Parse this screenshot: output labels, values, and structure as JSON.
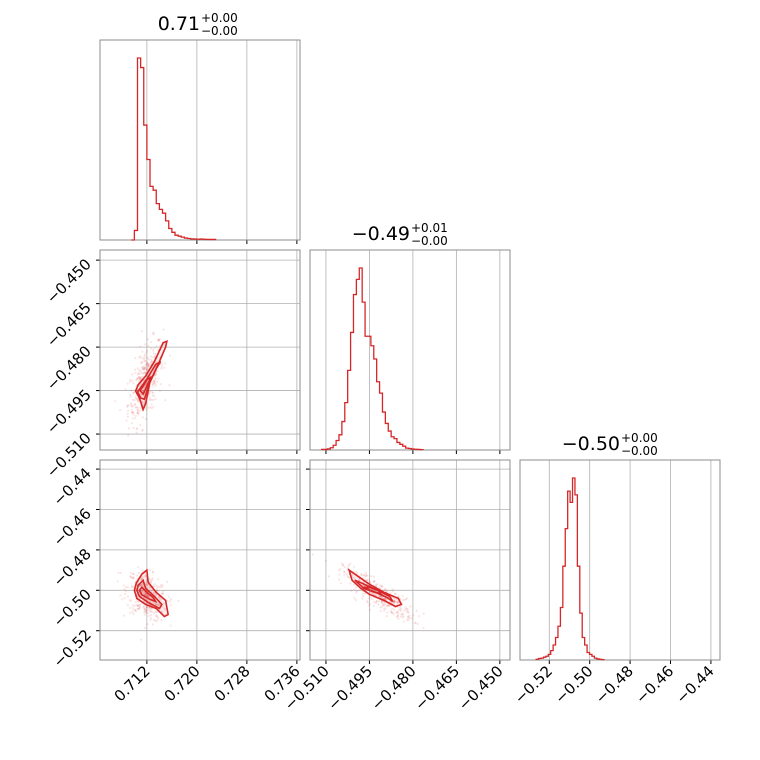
{
  "colors": {
    "line": "#d62728",
    "frame": "#8c8c8c",
    "grid": "#b0b0b0",
    "background": "#ffffff"
  },
  "chart_data": {
    "type": "corner",
    "parameters": [
      {
        "range": [
          0.7045,
          0.7365
        ],
        "ticks": [
          0.712,
          0.72,
          0.728,
          0.736
        ],
        "tick_labels": [
          "0.712",
          "0.720",
          "0.728",
          "0.736"
        ]
      },
      {
        "range": [
          -0.5155,
          -0.4465
        ],
        "ticks": [
          -0.51,
          -0.495,
          -0.48,
          -0.465,
          -0.45
        ],
        "tick_labels": [
          "−0.510",
          "−0.495",
          "−0.480",
          "−0.465",
          "−0.450"
        ]
      },
      {
        "range": [
          -0.5345,
          -0.4355
        ],
        "ticks": [
          -0.52,
          -0.5,
          -0.48,
          -0.46,
          -0.44
        ],
        "tick_labels": [
          "−0.52",
          "−0.50",
          "−0.48",
          "−0.46",
          "−0.44"
        ]
      }
    ],
    "titles": [
      {
        "main": "0.71",
        "upper": "+0.00",
        "lower": "−0.00"
      },
      {
        "main": "−0.49",
        "upper": "+0.01",
        "lower": "−0.00"
      },
      {
        "main": "−0.50",
        "upper": "+0.00",
        "lower": "−0.00"
      }
    ],
    "histograms": [
      {
        "bin_start": 0.7095,
        "bin_width": 0.0005,
        "counts": [
          0,
          0.05,
          0.95,
          0.9,
          0.6,
          0.42,
          0.28,
          0.26,
          0.19,
          0.16,
          0.14,
          0.1,
          0.06,
          0.04,
          0.025,
          0.02,
          0.015,
          0.01,
          0.008,
          0.006,
          0.005,
          0.004,
          0.005,
          0.004,
          0.003,
          0.003,
          0.003
        ]
      },
      {
        "bin_start": -0.5115,
        "bin_width": 0.001,
        "counts": [
          0.003,
          0.003,
          0.006,
          0.012,
          0.025,
          0.05,
          0.08,
          0.15,
          0.25,
          0.42,
          0.62,
          0.82,
          0.9,
          0.96,
          0.78,
          0.6,
          0.6,
          0.55,
          0.48,
          0.36,
          0.3,
          0.2,
          0.14,
          0.1,
          0.07,
          0.06,
          0.04,
          0.03,
          0.02,
          0.01,
          0.008,
          0.005,
          0.004,
          0.003,
          0.002
        ]
      },
      {
        "bin_start": -0.5265,
        "bin_width": 0.0012,
        "counts": [
          0.004,
          0.008,
          0.01,
          0.015,
          0.02,
          0.03,
          0.05,
          0.08,
          0.12,
          0.18,
          0.28,
          0.5,
          0.7,
          0.9,
          0.84,
          0.97,
          0.88,
          0.5,
          0.25,
          0.12,
          0.08,
          0.04,
          0.03,
          0.02,
          0.01,
          0.006,
          0.004,
          0.002
        ]
      }
    ],
    "contours": {
      "p1_p0": [
        {
          "level": "outer",
          "points": [
            [
              0.7102,
              -0.4952
            ],
            [
              0.7108,
              -0.4975
            ],
            [
              0.7114,
              -0.5015
            ],
            [
              0.7118,
              -0.4995
            ],
            [
              0.7125,
              -0.492
            ],
            [
              0.7138,
              -0.486
            ],
            [
              0.715,
              -0.48
            ],
            [
              0.7152,
              -0.478
            ],
            [
              0.7146,
              -0.4785
            ],
            [
              0.7132,
              -0.485
            ],
            [
              0.7118,
              -0.49
            ],
            [
              0.7106,
              -0.493
            ]
          ]
        },
        {
          "level": "middle",
          "points": [
            [
              0.7105,
              -0.4955
            ],
            [
              0.711,
              -0.4975
            ],
            [
              0.7116,
              -0.498
            ],
            [
              0.7124,
              -0.4925
            ],
            [
              0.7136,
              -0.487
            ],
            [
              0.7142,
              -0.485
            ],
            [
              0.7134,
              -0.486
            ],
            [
              0.712,
              -0.491
            ],
            [
              0.711,
              -0.494
            ]
          ]
        },
        {
          "level": "inner",
          "points": [
            [
              0.7109,
              -0.495
            ],
            [
              0.7114,
              -0.4962
            ],
            [
              0.712,
              -0.4935
            ],
            [
              0.7126,
              -0.4905
            ],
            [
              0.712,
              -0.4912
            ],
            [
              0.7113,
              -0.4938
            ]
          ]
        }
      ],
      "p2_p0": [
        {
          "level": "outer",
          "points": [
            [
              0.71,
              -0.5
            ],
            [
              0.7104,
              -0.504
            ],
            [
              0.7118,
              -0.507
            ],
            [
              0.7135,
              -0.509
            ],
            [
              0.7148,
              -0.513
            ],
            [
              0.7154,
              -0.512
            ],
            [
              0.715,
              -0.505
            ],
            [
              0.7135,
              -0.501
            ],
            [
              0.7122,
              -0.496
            ],
            [
              0.712,
              -0.49
            ],
            [
              0.7112,
              -0.492
            ],
            [
              0.7103,
              -0.4965
            ]
          ]
        },
        {
          "level": "middle",
          "points": [
            [
              0.7104,
              -0.5
            ],
            [
              0.7108,
              -0.503
            ],
            [
              0.7122,
              -0.506
            ],
            [
              0.714,
              -0.509
            ],
            [
              0.7144,
              -0.507
            ],
            [
              0.7132,
              -0.503
            ],
            [
              0.7118,
              -0.499
            ],
            [
              0.7114,
              -0.495
            ],
            [
              0.7106,
              -0.4975
            ]
          ]
        },
        {
          "level": "inner",
          "points": [
            [
              0.7108,
              -0.5
            ],
            [
              0.7112,
              -0.5022
            ],
            [
              0.7125,
              -0.5045
            ],
            [
              0.7134,
              -0.5055
            ],
            [
              0.713,
              -0.5035
            ],
            [
              0.7118,
              -0.5005
            ],
            [
              0.7112,
              -0.4985
            ]
          ]
        }
      ],
      "p2_p1": [
        {
          "level": "outer",
          "points": [
            [
              -0.502,
              -0.49
            ],
            [
              -0.501,
              -0.495
            ],
            [
              -0.498,
              -0.499
            ],
            [
              -0.495,
              -0.502
            ],
            [
              -0.49,
              -0.505
            ],
            [
              -0.486,
              -0.508
            ],
            [
              -0.484,
              -0.507
            ],
            [
              -0.485,
              -0.504
            ],
            [
              -0.49,
              -0.501
            ],
            [
              -0.495,
              -0.497
            ],
            [
              -0.499,
              -0.493
            ]
          ]
        },
        {
          "level": "middle",
          "points": [
            [
              -0.5,
              -0.495
            ],
            [
              -0.497,
              -0.499
            ],
            [
              -0.493,
              -0.501
            ],
            [
              -0.489,
              -0.5035
            ],
            [
              -0.487,
              -0.5055
            ],
            [
              -0.488,
              -0.503
            ],
            [
              -0.492,
              -0.5
            ],
            [
              -0.496,
              -0.4975
            ]
          ]
        },
        {
          "level": "inner",
          "points": [
            [
              -0.497,
              -0.4985
            ],
            [
              -0.494,
              -0.5005
            ],
            [
              -0.491,
              -0.5018
            ],
            [
              -0.492,
              -0.5
            ],
            [
              -0.495,
              -0.4985
            ]
          ]
        }
      ]
    }
  }
}
